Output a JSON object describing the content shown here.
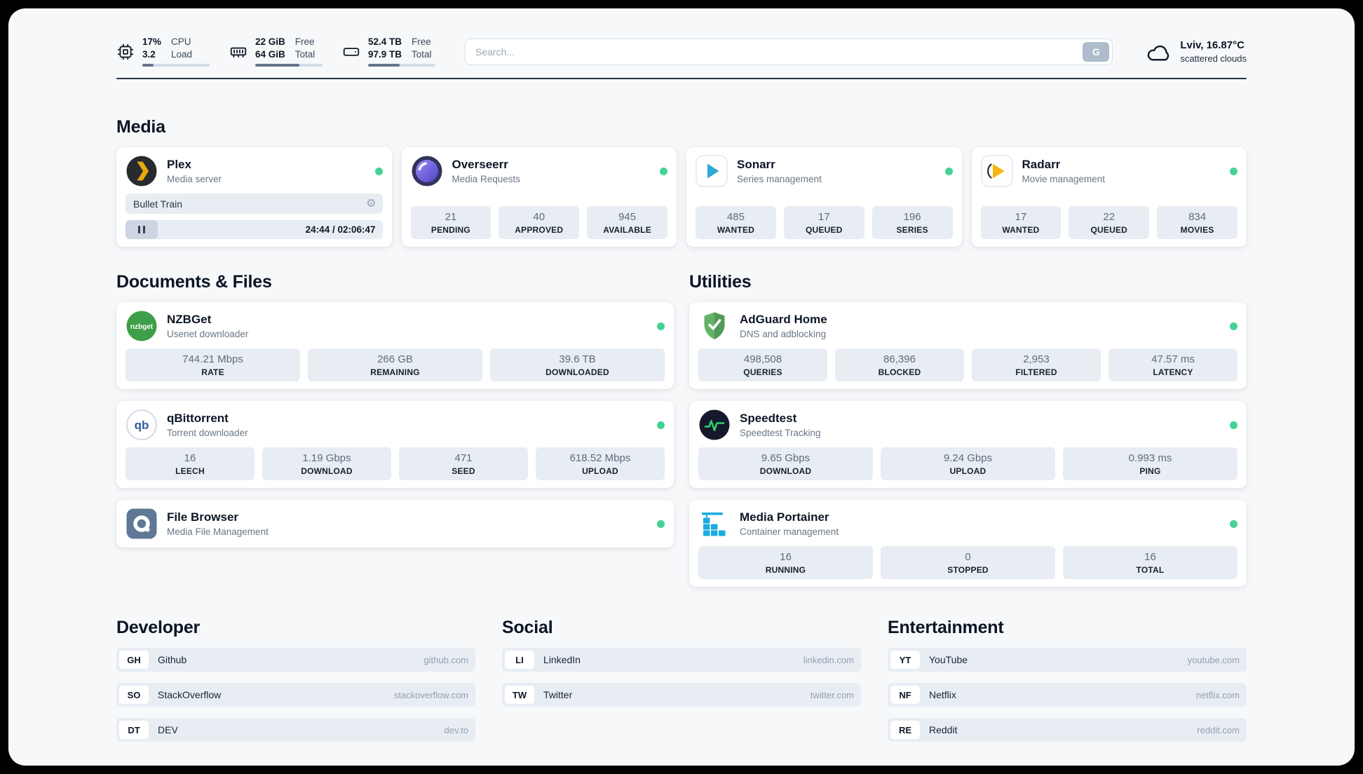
{
  "colors": {
    "status_online": "#42d392",
    "page_bg": "#f6f8fa",
    "chip_bg": "#e8edf4"
  },
  "icons": {
    "gear": "⚙",
    "nzbget_text": "nzbget",
    "qb_text": "qb"
  },
  "header": {
    "widgets": [
      {
        "icon": "cpu-icon",
        "v1": "17%",
        "v2": "3.2",
        "l1": "CPU",
        "l2": "Load",
        "progress": 17
      },
      {
        "icon": "memory-icon",
        "v1": "22 GiB",
        "v2": "64 GiB",
        "l1": "Free",
        "l2": "Total",
        "progress": 66
      },
      {
        "icon": "disk-icon",
        "v1": "52.4 TB",
        "v2": "97.9 TB",
        "l1": "Free",
        "l2": "Total",
        "progress": 47
      }
    ],
    "search": {
      "placeholder": "Search...",
      "button_label": "G"
    },
    "weather": {
      "icon": "cloud-icon",
      "location": "Lviv, 16.87°C",
      "condition": "scattered clouds"
    }
  },
  "sections": {
    "media": {
      "title": "Media",
      "plex": {
        "icon": "plex-icon",
        "name": "Plex",
        "description": "Media server",
        "status": "online",
        "now_playing": "Bullet Train",
        "time": "24:44 / 02:06:47"
      },
      "overseerr": {
        "icon": "overseerr-icon",
        "name": "Overseerr",
        "description": "Media Requests",
        "status": "online",
        "stats": [
          {
            "value": "21",
            "label": "PENDING"
          },
          {
            "value": "40",
            "label": "APPROVED"
          },
          {
            "value": "945",
            "label": "AVAILABLE"
          }
        ]
      },
      "sonarr": {
        "icon": "sonarr-icon",
        "name": "Sonarr",
        "description": "Series management",
        "status": "online",
        "stats": [
          {
            "value": "485",
            "label": "WANTED"
          },
          {
            "value": "17",
            "label": "QUEUED"
          },
          {
            "value": "196",
            "label": "SERIES"
          }
        ]
      },
      "radarr": {
        "icon": "radarr-icon",
        "name": "Radarr",
        "description": "Movie management",
        "status": "online",
        "stats": [
          {
            "value": "17",
            "label": "WANTED"
          },
          {
            "value": "22",
            "label": "QUEUED"
          },
          {
            "value": "834",
            "label": "MOVIES"
          }
        ]
      }
    },
    "documents": {
      "title": "Documents & Files",
      "nzbget": {
        "icon": "nzbget-icon",
        "name": "NZBGet",
        "description": "Usenet downloader",
        "status": "online",
        "stats": [
          {
            "value": "744.21 Mbps",
            "label": "RATE"
          },
          {
            "value": "266 GB",
            "label": "REMAINING"
          },
          {
            "value": "39.6 TB",
            "label": "DOWNLOADED"
          }
        ]
      },
      "qbittorrent": {
        "icon": "qbittorrent-icon",
        "name": "qBittorrent",
        "description": "Torrent downloader",
        "status": "online",
        "stats": [
          {
            "value": "16",
            "label": "LEECH"
          },
          {
            "value": "1.19 Gbps",
            "label": "DOWNLOAD"
          },
          {
            "value": "471",
            "label": "SEED"
          },
          {
            "value": "618.52 Mbps",
            "label": "UPLOAD"
          }
        ]
      },
      "filebrowser": {
        "icon": "filebrowser-icon",
        "name": "File Browser",
        "description": "Media File Management",
        "status": "online"
      }
    },
    "utilities": {
      "title": "Utilities",
      "adguard": {
        "icon": "adguard-icon",
        "name": "AdGuard Home",
        "description": "DNS and adblocking",
        "status": "online",
        "stats": [
          {
            "value": "498,508",
            "label": "QUERIES"
          },
          {
            "value": "86,396",
            "label": "BLOCKED"
          },
          {
            "value": "2,953",
            "label": "FILTERED"
          },
          {
            "value": "47.57 ms",
            "label": "LATENCY"
          }
        ]
      },
      "speedtest": {
        "icon": "speedtest-icon",
        "name": "Speedtest",
        "description": "Speedtest Tracking",
        "status": "online",
        "stats": [
          {
            "value": "9.65 Gbps",
            "label": "DOWNLOAD"
          },
          {
            "value": "9.24 Gbps",
            "label": "UPLOAD"
          },
          {
            "value": "0.993 ms",
            "label": "PING"
          }
        ]
      },
      "portainer": {
        "icon": "portainer-icon",
        "name": "Media Portainer",
        "description": "Container management",
        "status": "online",
        "stats": [
          {
            "value": "16",
            "label": "RUNNING"
          },
          {
            "value": "0",
            "label": "STOPPED"
          },
          {
            "value": "16",
            "label": "TOTAL"
          }
        ]
      }
    },
    "bookmarks": [
      {
        "title": "Developer",
        "items": [
          {
            "abbr": "GH",
            "name": "Github",
            "url": "github.com"
          },
          {
            "abbr": "SO",
            "name": "StackOverflow",
            "url": "stackoverflow.com"
          },
          {
            "abbr": "DT",
            "name": "DEV",
            "url": "dev.to"
          }
        ]
      },
      {
        "title": "Social",
        "items": [
          {
            "abbr": "LI",
            "name": "LinkedIn",
            "url": "linkedin.com"
          },
          {
            "abbr": "TW",
            "name": "Twitter",
            "url": "twitter.com"
          }
        ]
      },
      {
        "title": "Entertainment",
        "items": [
          {
            "abbr": "YT",
            "name": "YouTube",
            "url": "youtube.com"
          },
          {
            "abbr": "NF",
            "name": "Netflix",
            "url": "netflix.com"
          },
          {
            "abbr": "RE",
            "name": "Reddit",
            "url": "reddit.com"
          }
        ]
      }
    ]
  }
}
